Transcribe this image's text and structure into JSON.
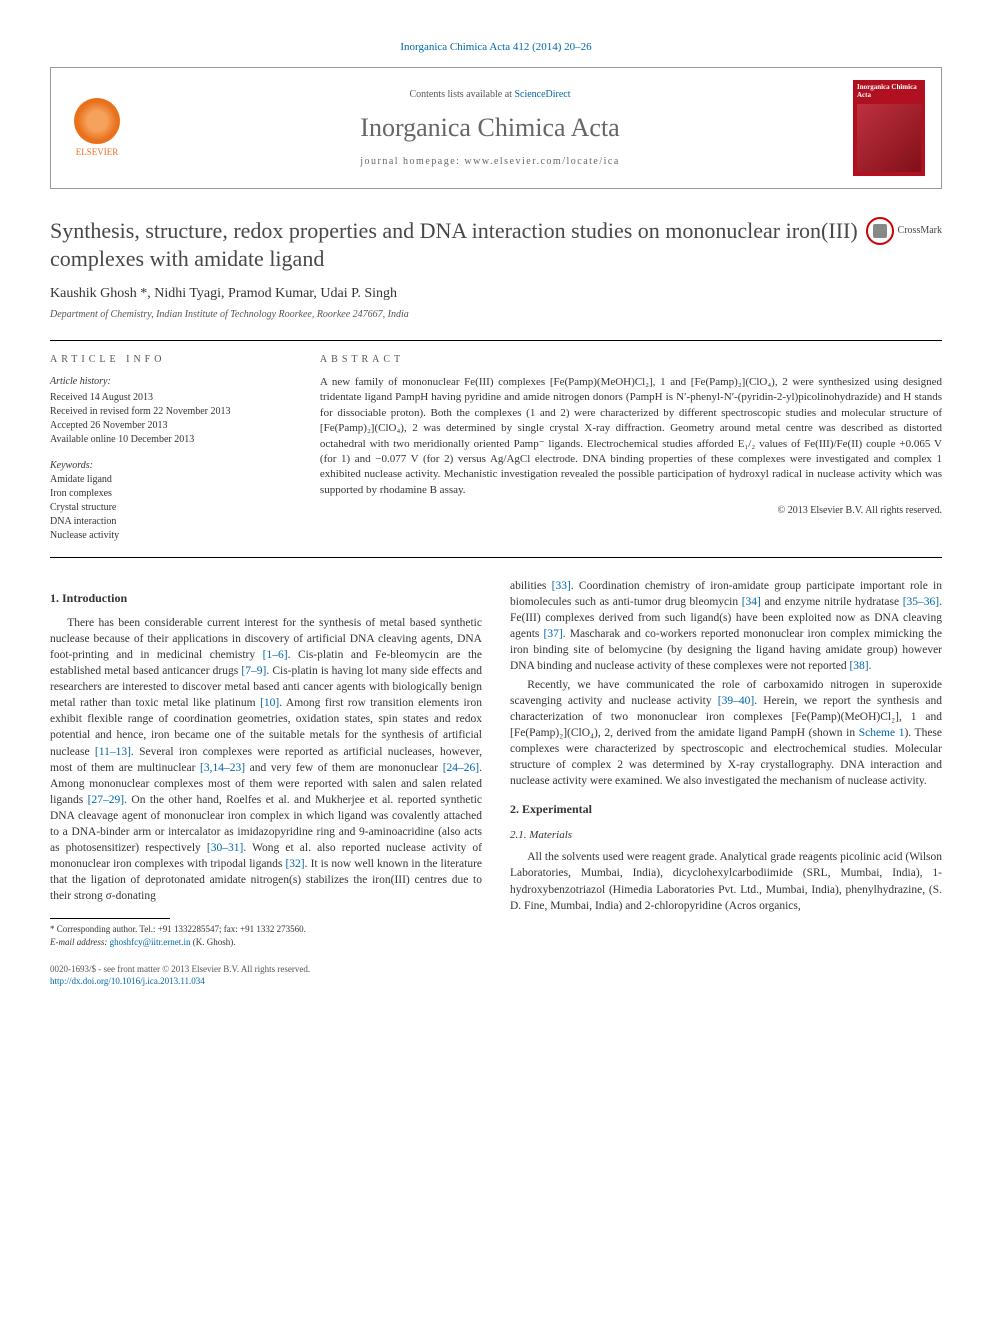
{
  "issue_line": "Inorganica Chimica Acta 412 (2014) 20–26",
  "header": {
    "contents_prefix": "Contents lists available at ",
    "sciencedirect": "ScienceDirect",
    "journal": "Inorganica Chimica Acta",
    "homepage_prefix": "journal homepage: ",
    "homepage_url": "www.elsevier.com/locate/ica",
    "elsevier": "ELSEVIER",
    "cover_title": "Inorganica Chimica Acta"
  },
  "title": "Synthesis, structure, redox properties and DNA interaction studies on mononuclear iron(III) complexes with amidate ligand",
  "crossmark": "CrossMark",
  "authors_line": "Kaushik Ghosh *, Nidhi Tyagi, Pramod Kumar, Udai P. Singh",
  "affiliation": "Department of Chemistry, Indian Institute of Technology Roorkee, Roorkee 247667, India",
  "labels": {
    "article_info": "ARTICLE INFO",
    "abstract": "ABSTRACT",
    "article_history": "Article history:",
    "keywords": "Keywords:"
  },
  "history": {
    "received": "Received 14 August 2013",
    "revised": "Received in revised form 22 November 2013",
    "accepted": "Accepted 26 November 2013",
    "online": "Available online 10 December 2013"
  },
  "keywords": [
    "Amidate ligand",
    "Iron complexes",
    "Crystal structure",
    "DNA interaction",
    "Nuclease activity"
  ],
  "abstract": "A new family of mononuclear Fe(III) complexes [Fe(Pamp)(MeOH)Cl₂], 1 and [Fe(Pamp)₂](ClO₄), 2 were synthesized using designed tridentate ligand PampH having pyridine and amide nitrogen donors (PampH is N′-phenyl-N′-(pyridin-2-yl)picolinohydrazide) and H stands for dissociable proton). Both the complexes (1 and 2) were characterized by different spectroscopic studies and molecular structure of [Fe(Pamp)₂](ClO₄), 2 was determined by single crystal X-ray diffraction. Geometry around metal centre was described as distorted octahedral with two meridionally oriented Pamp⁻ ligands. Electrochemical studies afforded E₁/₂ values of Fe(III)/Fe(II) couple +0.065 V (for 1) and −0.077 V (for 2) versus Ag/AgCl electrode. DNA binding properties of these complexes were investigated and complex 1 exhibited nuclease activity. Mechanistic investigation revealed the possible participation of hydroxyl radical in nuclease activity which was supported by rhodamine B assay.",
  "copyright": "© 2013 Elsevier B.V. All rights reserved.",
  "sections": {
    "intro_head": "1. Introduction",
    "exp_head": "2. Experimental",
    "materials_head": "2.1. Materials"
  },
  "intro_p1a": "There has been considerable current interest for the synthesis of metal based synthetic nuclease because of their applications in discovery of artificial DNA cleaving agents, DNA foot-printing and in medicinal chemistry ",
  "ref1": "[1–6]",
  "intro_p1b": ". Cis-platin and Fe-bleomycin are the established metal based anticancer drugs ",
  "ref2": "[7–9]",
  "intro_p1c": ". Cis-platin is having lot many side effects and researchers are interested to discover metal based anti cancer agents with biologically benign metal rather than toxic metal like platinum ",
  "ref3": "[10]",
  "intro_p1d": ". Among first row transition elements iron exhibit flexible range of coordination geometries, oxidation states, spin states and redox potential and hence, iron became one of the suitable metals for the synthesis of artificial nuclease ",
  "ref4": "[11–13]",
  "intro_p1e": ". Several iron complexes were reported as artificial nucleases, however, most of them are multinuclear ",
  "ref5": "[3,14–23]",
  "intro_p1f": " and very few of them are mononuclear ",
  "ref6": "[24–26]",
  "intro_p1g": ". Among mononuclear complexes most of them were reported with salen and salen related ligands ",
  "ref7": "[27–29]",
  "intro_p1h": ". On the other hand, Roelfes et al. and Mukherjee et al. reported synthetic DNA cleavage agent of mononuclear iron complex in which ligand was covalently attached to a DNA-binder arm or intercalator as imidazopyridine ring and 9-aminoacridine (also acts as photosensitizer) respectively ",
  "ref8": "[30–31]",
  "intro_p1i": ". Wong et al. also reported nuclease activity of mononuclear iron complexes with tripodal ligands ",
  "ref9": "[32]",
  "intro_p1j": ". It is now well known in the literature that the ligation of deprotonated amidate nitrogen(s) stabilizes the iron(III) centres due to their strong σ-donating",
  "col2_p1_a": "abilities ",
  "ref10": "[33]",
  "col2_p1_b": ". Coordination chemistry of iron-amidate group participate important role in biomolecules such as anti-tumor drug bleomycin ",
  "ref11": "[34]",
  "col2_p1_c": " and enzyme nitrile hydratase ",
  "ref12": "[35–36]",
  "col2_p1_d": ". Fe(III) complexes derived from such ligand(s) have been exploited now as DNA cleaving agents ",
  "ref13": "[37]",
  "col2_p1_e": ". Mascharak and co-workers reported mononuclear iron complex mimicking the iron binding site of belomycine (by designing the ligand having amidate group) however DNA binding and nuclease activity of these complexes were not reported ",
  "ref14": "[38]",
  "col2_p1_f": ".",
  "col2_p2_a": "Recently, we have communicated the role of carboxamido nitrogen in superoxide scavenging activity and nuclease activity ",
  "ref15": "[39–40]",
  "col2_p2_b": ". Herein, we report the synthesis and characterization of two mononuclear iron complexes [Fe(Pamp)(MeOH)Cl₂], 1 and [Fe(Pamp)₂](ClO₄), 2, derived from the amidate ligand PampH (shown in ",
  "scheme1": "Scheme 1",
  "col2_p2_c": "). These complexes were characterized by spectroscopic and electrochemical studies. Molecular structure of complex 2 was determined by X-ray crystallography. DNA interaction and nuclease activity were examined. We also investigated the mechanism of nuclease activity.",
  "materials_p1": "All the solvents used were reagent grade. Analytical grade reagents picolinic acid (Wilson Laboratories, Mumbai, India), dicyclohexylcarbodiimide (SRL, Mumbai, India), 1-hydroxybenzotriazol (Himedia Laboratories Pvt. Ltd., Mumbai, India), phenylhydrazine, (S. D. Fine, Mumbai, India) and 2-chloropyridine (Acros organics,",
  "corr_note": "* Corresponding author. Tel.: +91 1332285547; fax: +91 1332 273560.",
  "email_label": "E-mail address: ",
  "email": "ghoshfcy@iitr.ernet.in",
  "email_tail": " (K. Ghosh).",
  "front_matter": "0020-1693/$ - see front matter © 2013 Elsevier B.V. All rights reserved.",
  "doi_url": "http://dx.doi.org/10.1016/j.ica.2013.11.034",
  "colors": {
    "link": "#0066aa",
    "elsevier_orange": "#e9711c",
    "cover_red": "#b01020",
    "text": "#333333",
    "heading_grey": "#666666"
  },
  "typography": {
    "body_fontsize_pt": 9,
    "title_fontsize_pt": 17,
    "journal_fontsize_pt": 20
  }
}
